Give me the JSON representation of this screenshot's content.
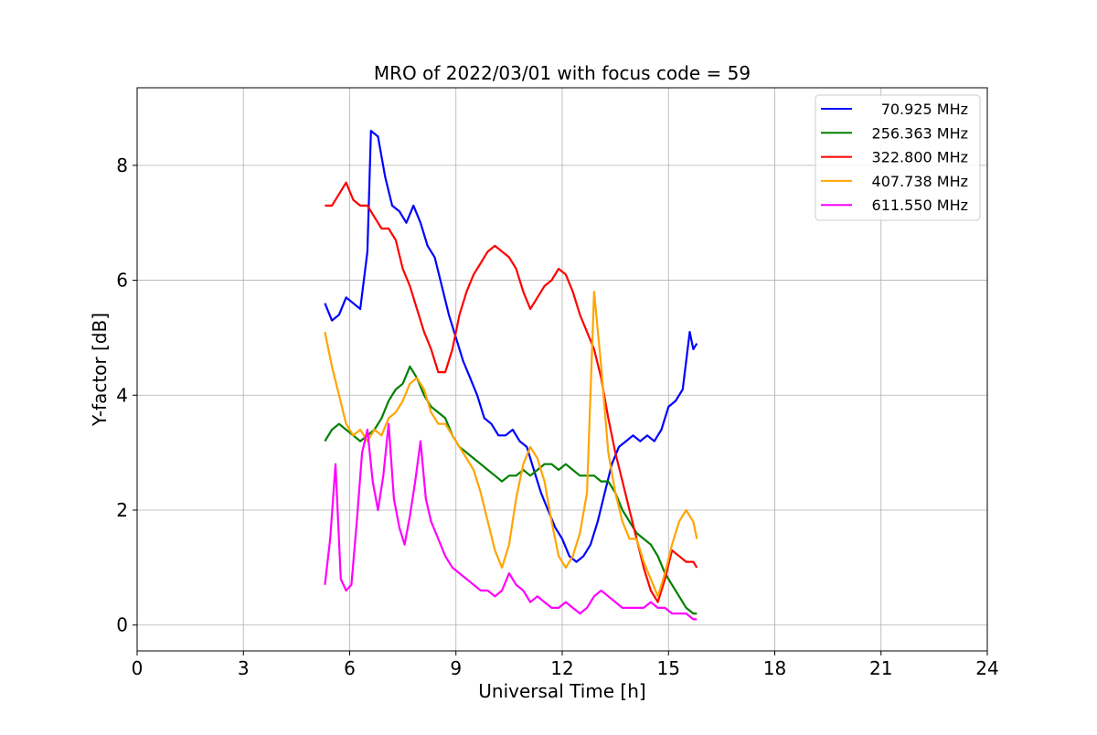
{
  "chart_data": {
    "type": "line",
    "title": "MRO of 2022/03/01 with focus code = 59",
    "xlabel": "Universal Time [h]",
    "ylabel": "Y-factor [dB]",
    "xlim": [
      0,
      24
    ],
    "ylim": [
      -0.45,
      9.35
    ],
    "xticks": [
      0,
      3,
      6,
      9,
      12,
      15,
      18,
      21,
      24
    ],
    "yticks": [
      0,
      2,
      4,
      6,
      8
    ],
    "grid": true,
    "legend_position": "top-right",
    "series": [
      {
        "name": "70.925 MHz",
        "color": "#0000ff",
        "x": [
          5.3,
          5.5,
          5.7,
          5.9,
          6.1,
          6.3,
          6.5,
          6.6,
          6.8,
          7.0,
          7.2,
          7.4,
          7.6,
          7.8,
          8.0,
          8.2,
          8.4,
          8.6,
          8.8,
          9.0,
          9.2,
          9.4,
          9.6,
          9.8,
          10.0,
          10.2,
          10.4,
          10.6,
          10.8,
          11.0,
          11.2,
          11.4,
          11.6,
          11.8,
          12.0,
          12.2,
          12.4,
          12.6,
          12.8,
          13.0,
          13.2,
          13.4,
          13.6,
          13.8,
          14.0,
          14.2,
          14.4,
          14.6,
          14.8,
          15.0,
          15.2,
          15.4,
          15.6,
          15.7,
          15.8
        ],
        "y": [
          5.6,
          5.3,
          5.4,
          5.7,
          5.6,
          5.5,
          6.5,
          8.6,
          8.5,
          7.8,
          7.3,
          7.2,
          7.0,
          7.3,
          7.0,
          6.6,
          6.4,
          5.9,
          5.4,
          5.0,
          4.6,
          4.3,
          4.0,
          3.6,
          3.5,
          3.3,
          3.3,
          3.4,
          3.2,
          3.1,
          2.7,
          2.3,
          2.0,
          1.7,
          1.5,
          1.2,
          1.1,
          1.2,
          1.4,
          1.8,
          2.3,
          2.8,
          3.1,
          3.2,
          3.3,
          3.2,
          3.3,
          3.2,
          3.4,
          3.8,
          3.9,
          4.1,
          5.1,
          4.8,
          4.9
        ]
      },
      {
        "name": "256.363 MHz",
        "color": "#008000",
        "x": [
          5.3,
          5.5,
          5.7,
          5.9,
          6.1,
          6.3,
          6.5,
          6.7,
          6.9,
          7.1,
          7.3,
          7.5,
          7.7,
          7.9,
          8.1,
          8.3,
          8.5,
          8.7,
          8.9,
          9.1,
          9.3,
          9.5,
          9.7,
          9.9,
          10.1,
          10.3,
          10.5,
          10.7,
          10.9,
          11.1,
          11.3,
          11.5,
          11.7,
          11.9,
          12.1,
          12.3,
          12.5,
          12.7,
          12.9,
          13.1,
          13.3,
          13.5,
          13.7,
          13.9,
          14.1,
          14.3,
          14.5,
          14.7,
          14.9,
          15.1,
          15.3,
          15.5,
          15.7,
          15.8
        ],
        "y": [
          3.2,
          3.4,
          3.5,
          3.4,
          3.3,
          3.2,
          3.3,
          3.4,
          3.6,
          3.9,
          4.1,
          4.2,
          4.5,
          4.3,
          4.0,
          3.8,
          3.7,
          3.6,
          3.3,
          3.1,
          3.0,
          2.9,
          2.8,
          2.7,
          2.6,
          2.5,
          2.6,
          2.6,
          2.7,
          2.6,
          2.7,
          2.8,
          2.8,
          2.7,
          2.8,
          2.7,
          2.6,
          2.6,
          2.6,
          2.5,
          2.5,
          2.3,
          2.0,
          1.8,
          1.6,
          1.5,
          1.4,
          1.2,
          0.9,
          0.7,
          0.5,
          0.3,
          0.2,
          0.2
        ]
      },
      {
        "name": "322.800 MHz",
        "color": "#ff0000",
        "x": [
          5.3,
          5.5,
          5.7,
          5.9,
          6.1,
          6.3,
          6.5,
          6.7,
          6.9,
          7.1,
          7.3,
          7.5,
          7.7,
          7.9,
          8.1,
          8.3,
          8.5,
          8.7,
          8.9,
          9.1,
          9.3,
          9.5,
          9.7,
          9.9,
          10.1,
          10.3,
          10.5,
          10.7,
          10.9,
          11.1,
          11.3,
          11.5,
          11.7,
          11.9,
          12.1,
          12.3,
          12.5,
          12.7,
          12.9,
          13.1,
          13.3,
          13.5,
          13.7,
          13.9,
          14.1,
          14.3,
          14.5,
          14.7,
          14.9,
          15.1,
          15.3,
          15.5,
          15.7,
          15.8
        ],
        "y": [
          7.3,
          7.3,
          7.5,
          7.7,
          7.4,
          7.3,
          7.3,
          7.1,
          6.9,
          6.9,
          6.7,
          6.2,
          5.9,
          5.5,
          5.1,
          4.8,
          4.4,
          4.4,
          4.8,
          5.4,
          5.8,
          6.1,
          6.3,
          6.5,
          6.6,
          6.5,
          6.4,
          6.2,
          5.8,
          5.5,
          5.7,
          5.9,
          6.0,
          6.2,
          6.1,
          5.8,
          5.4,
          5.1,
          4.8,
          4.3,
          3.6,
          3.0,
          2.5,
          2.0,
          1.5,
          1.0,
          0.6,
          0.4,
          0.8,
          1.3,
          1.2,
          1.1,
          1.1,
          1.0
        ]
      },
      {
        "name": "407.738 MHz",
        "color": "#ffa500",
        "x": [
          5.3,
          5.5,
          5.7,
          5.9,
          6.1,
          6.3,
          6.5,
          6.7,
          6.9,
          7.1,
          7.3,
          7.5,
          7.7,
          7.9,
          8.1,
          8.3,
          8.5,
          8.7,
          8.9,
          9.1,
          9.3,
          9.5,
          9.7,
          9.9,
          10.1,
          10.3,
          10.5,
          10.7,
          10.9,
          11.1,
          11.3,
          11.5,
          11.7,
          11.9,
          12.1,
          12.3,
          12.5,
          12.7,
          12.9,
          13.1,
          13.3,
          13.5,
          13.7,
          13.9,
          14.1,
          14.3,
          14.5,
          14.7,
          14.9,
          15.1,
          15.3,
          15.5,
          15.7,
          15.8
        ],
        "y": [
          5.1,
          4.5,
          4.0,
          3.5,
          3.3,
          3.4,
          3.2,
          3.4,
          3.3,
          3.6,
          3.7,
          3.9,
          4.2,
          4.3,
          4.1,
          3.7,
          3.5,
          3.5,
          3.3,
          3.1,
          2.9,
          2.7,
          2.3,
          1.8,
          1.3,
          1.0,
          1.4,
          2.2,
          2.8,
          3.1,
          2.9,
          2.5,
          1.8,
          1.2,
          1.0,
          1.2,
          1.6,
          2.3,
          5.8,
          4.5,
          3.0,
          2.3,
          1.8,
          1.5,
          1.5,
          1.1,
          0.8,
          0.5,
          0.9,
          1.4,
          1.8,
          2.0,
          1.8,
          1.5
        ]
      },
      {
        "name": "611.550 MHz",
        "color": "#ff00ff",
        "x": [
          5.3,
          5.45,
          5.6,
          5.75,
          5.9,
          6.05,
          6.2,
          6.35,
          6.5,
          6.65,
          6.8,
          6.95,
          7.1,
          7.25,
          7.4,
          7.55,
          7.7,
          7.85,
          8.0,
          8.15,
          8.3,
          8.5,
          8.7,
          8.9,
          9.1,
          9.3,
          9.5,
          9.7,
          9.9,
          10.1,
          10.3,
          10.5,
          10.7,
          10.9,
          11.1,
          11.3,
          11.5,
          11.7,
          11.9,
          12.1,
          12.3,
          12.5,
          12.7,
          12.9,
          13.1,
          13.3,
          13.5,
          13.7,
          13.9,
          14.1,
          14.3,
          14.5,
          14.7,
          14.9,
          15.1,
          15.3,
          15.5,
          15.7,
          15.8
        ],
        "y": [
          0.7,
          1.5,
          2.8,
          0.8,
          0.6,
          0.7,
          1.8,
          3.0,
          3.4,
          2.5,
          2.0,
          2.6,
          3.5,
          2.2,
          1.7,
          1.4,
          1.9,
          2.5,
          3.2,
          2.2,
          1.8,
          1.5,
          1.2,
          1.0,
          0.9,
          0.8,
          0.7,
          0.6,
          0.6,
          0.5,
          0.6,
          0.9,
          0.7,
          0.6,
          0.4,
          0.5,
          0.4,
          0.3,
          0.3,
          0.4,
          0.3,
          0.2,
          0.3,
          0.5,
          0.6,
          0.5,
          0.4,
          0.3,
          0.3,
          0.3,
          0.3,
          0.4,
          0.3,
          0.3,
          0.2,
          0.2,
          0.2,
          0.1,
          0.1
        ]
      }
    ]
  }
}
